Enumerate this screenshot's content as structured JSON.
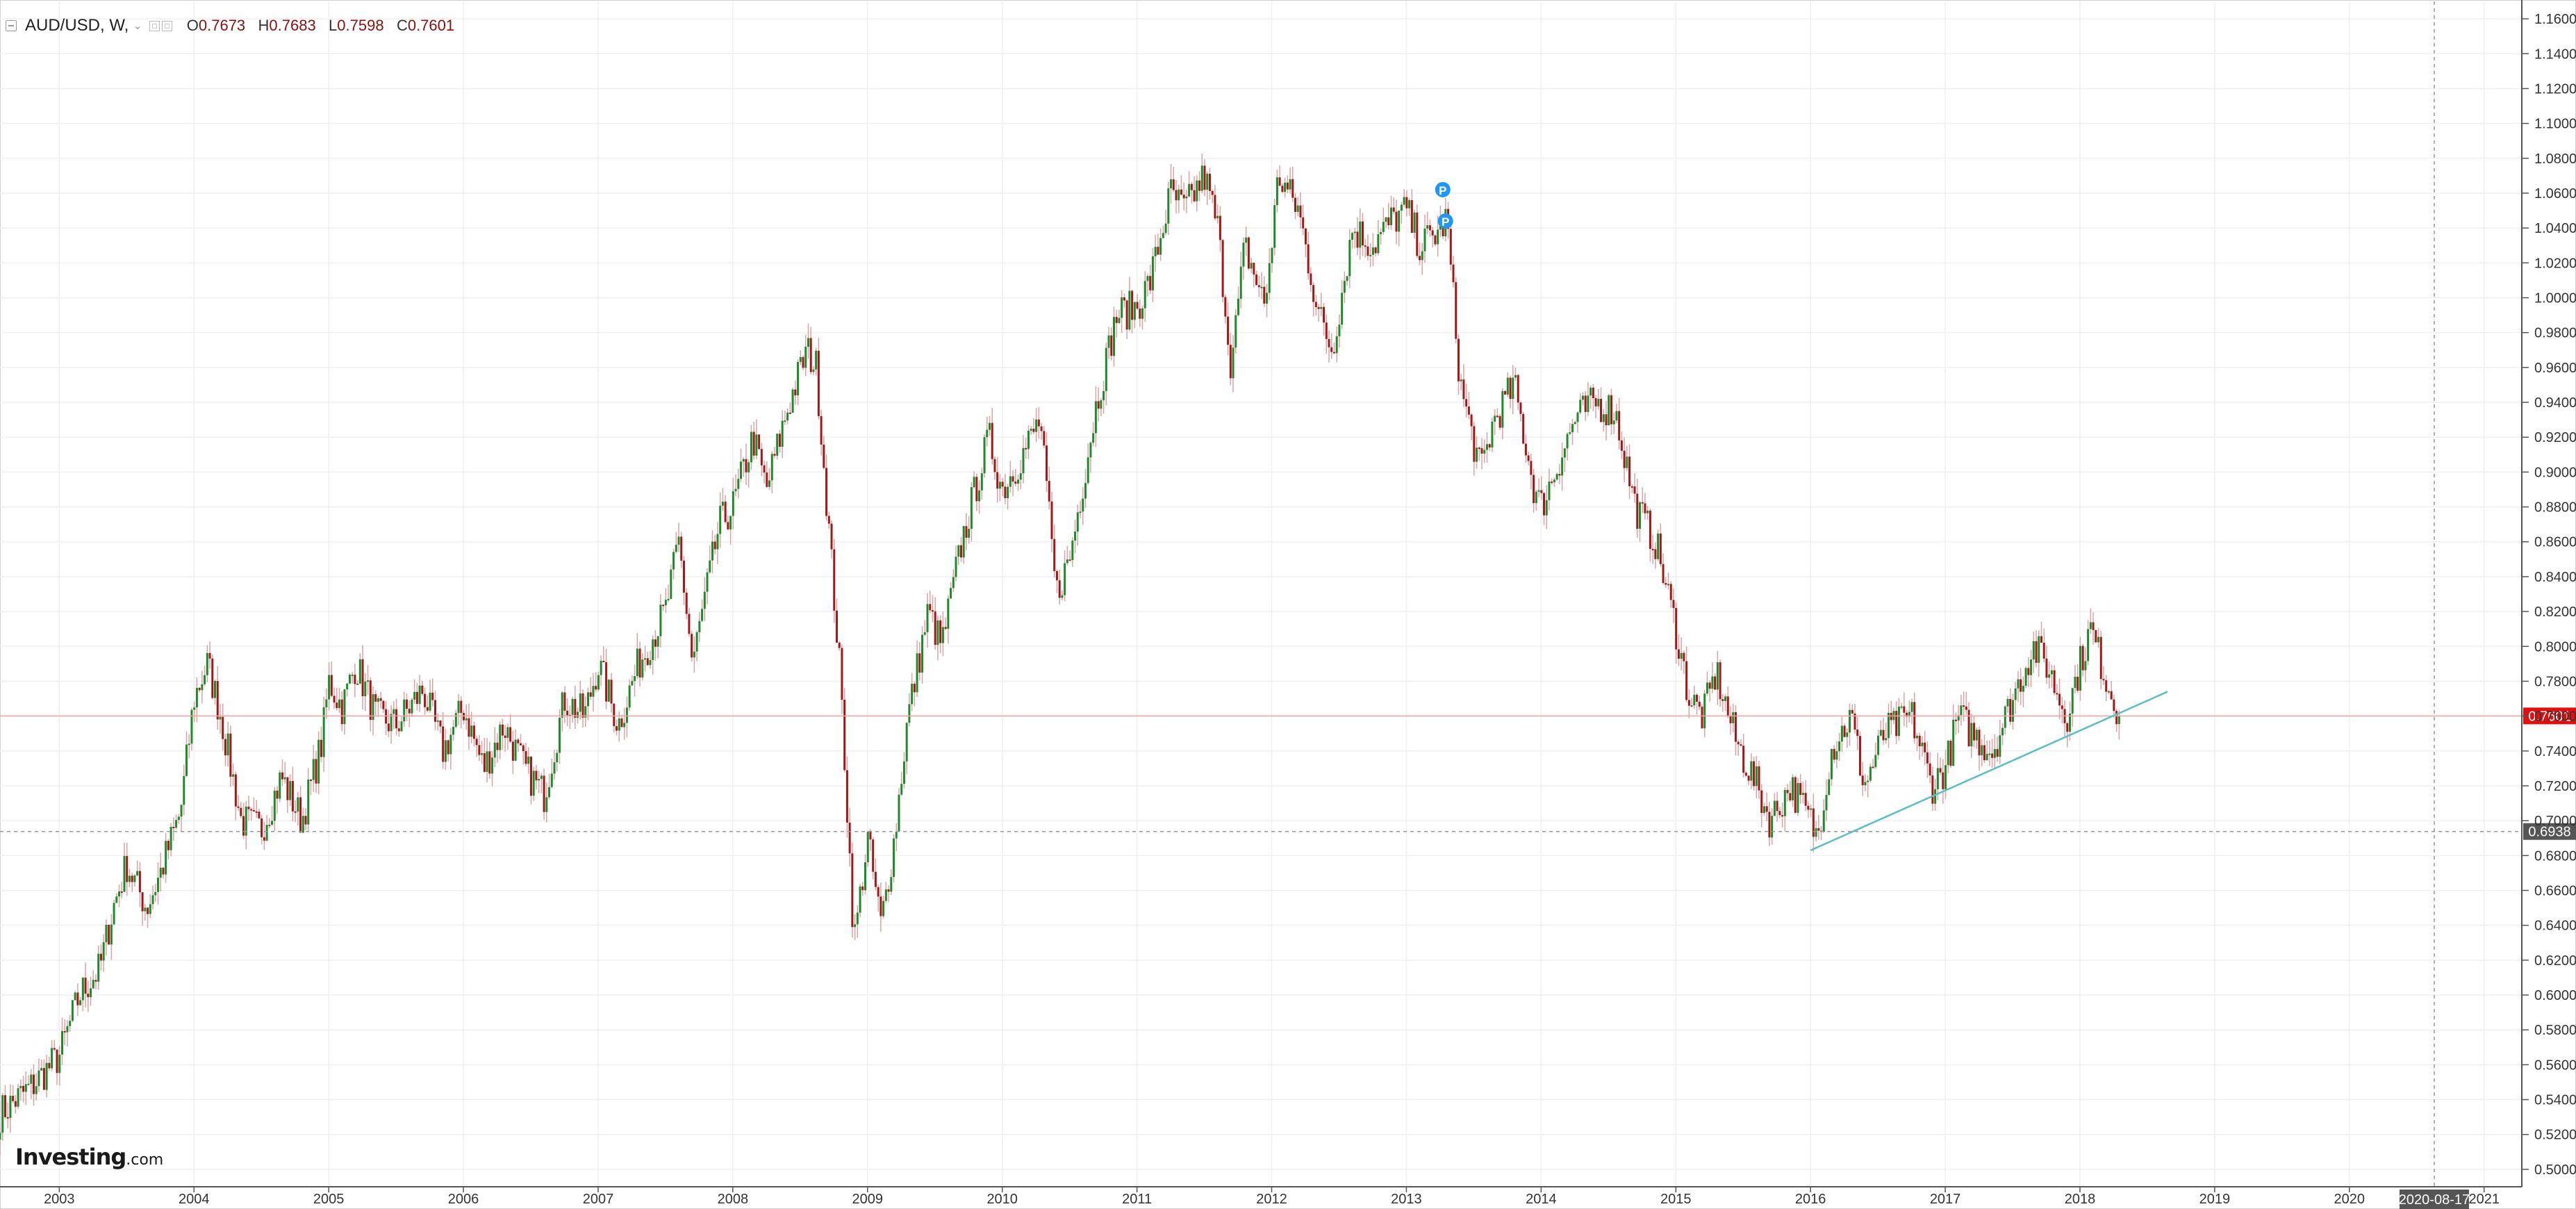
{
  "legend": {
    "symbol": "AUD/USD, W,",
    "open_label": "O",
    "open": "0.7673",
    "high_label": "H",
    "high": "0.7683",
    "low_label": "L",
    "low": "0.7598",
    "close_label": "C",
    "close": "0.7601"
  },
  "watermark": {
    "brand": "Investing",
    "suffix": ".com"
  },
  "colors": {
    "up": "#1e8a2b",
    "down": "#a51616",
    "wick": "#d9a3a3",
    "last_price": "#e01010",
    "trendline": "#5bbfc2",
    "grid": "#f0f0f0",
    "marker": "#2196f3"
  },
  "chart_data": {
    "type": "candlestick",
    "title": "",
    "x_ticks": [
      "2003",
      "2004",
      "2005",
      "2006",
      "2007",
      "2008",
      "2009",
      "2010",
      "2011",
      "2012",
      "2013",
      "2014",
      "2015",
      "2016",
      "2017",
      "2018",
      "2019",
      "2020",
      "2021"
    ],
    "x_range": [
      2002.56,
      2021.28
    ],
    "y_ticks": [
      "0.5000",
      "0.5200",
      "0.5400",
      "0.5600",
      "0.5800",
      "0.6000",
      "0.6200",
      "0.6400",
      "0.6600",
      "0.6800",
      "0.7000",
      "0.7200",
      "0.7400",
      "0.7600",
      "0.7800",
      "0.8000",
      "0.8200",
      "0.8400",
      "0.8600",
      "0.8800",
      "0.9000",
      "0.9200",
      "0.9400",
      "0.9600",
      "0.9800",
      "1.0000",
      "1.0200",
      "1.0400",
      "1.0600",
      "1.0800",
      "1.1000",
      "1.1200",
      "1.1400",
      "1.1600"
    ],
    "y_range": [
      0.49,
      1.17
    ],
    "anchors": [
      [
        2002.56,
        0.532
      ],
      [
        2002.8,
        0.548
      ],
      [
        2003.0,
        0.565
      ],
      [
        2003.15,
        0.6
      ],
      [
        2003.3,
        0.615
      ],
      [
        2003.4,
        0.65
      ],
      [
        2003.5,
        0.675
      ],
      [
        2003.65,
        0.65
      ],
      [
        2003.75,
        0.67
      ],
      [
        2003.9,
        0.705
      ],
      [
        2004.0,
        0.77
      ],
      [
        2004.1,
        0.79
      ],
      [
        2004.2,
        0.76
      ],
      [
        2004.35,
        0.7
      ],
      [
        2004.5,
        0.695
      ],
      [
        2004.65,
        0.725
      ],
      [
        2004.8,
        0.7
      ],
      [
        2004.95,
        0.745
      ],
      [
        2005.0,
        0.78
      ],
      [
        2005.1,
        0.765
      ],
      [
        2005.2,
        0.79
      ],
      [
        2005.35,
        0.76
      ],
      [
        2005.5,
        0.755
      ],
      [
        2005.7,
        0.775
      ],
      [
        2005.85,
        0.74
      ],
      [
        2006.0,
        0.765
      ],
      [
        2006.15,
        0.73
      ],
      [
        2006.3,
        0.755
      ],
      [
        2006.45,
        0.73
      ],
      [
        2006.6,
        0.715
      ],
      [
        2006.75,
        0.77
      ],
      [
        2006.9,
        0.76
      ],
      [
        2007.0,
        0.79
      ],
      [
        2007.15,
        0.755
      ],
      [
        2007.3,
        0.79
      ],
      [
        2007.5,
        0.82
      ],
      [
        2007.6,
        0.86
      ],
      [
        2007.7,
        0.79
      ],
      [
        2007.9,
        0.87
      ],
      [
        2008.0,
        0.88
      ],
      [
        2008.15,
        0.92
      ],
      [
        2008.25,
        0.89
      ],
      [
        2008.4,
        0.935
      ],
      [
        2008.55,
        0.97
      ],
      [
        2008.62,
        0.96
      ],
      [
        2008.7,
        0.88
      ],
      [
        2008.8,
        0.78
      ],
      [
        2008.9,
        0.63
      ],
      [
        2009.0,
        0.69
      ],
      [
        2009.1,
        0.64
      ],
      [
        2009.2,
        0.69
      ],
      [
        2009.3,
        0.76
      ],
      [
        2009.45,
        0.82
      ],
      [
        2009.55,
        0.8
      ],
      [
        2009.7,
        0.86
      ],
      [
        2009.9,
        0.92
      ],
      [
        2010.0,
        0.89
      ],
      [
        2010.15,
        0.91
      ],
      [
        2010.28,
        0.93
      ],
      [
        2010.4,
        0.83
      ],
      [
        2010.5,
        0.85
      ],
      [
        2010.7,
        0.94
      ],
      [
        2010.85,
        0.99
      ],
      [
        2011.0,
        0.995
      ],
      [
        2011.1,
        1.01
      ],
      [
        2011.25,
        1.06
      ],
      [
        2011.35,
        1.05
      ],
      [
        2011.5,
        1.07
      ],
      [
        2011.6,
        1.04
      ],
      [
        2011.7,
        0.96
      ],
      [
        2011.8,
        1.03
      ],
      [
        2011.95,
        0.995
      ],
      [
        2012.05,
        1.07
      ],
      [
        2012.2,
        1.05
      ],
      [
        2012.35,
        0.99
      ],
      [
        2012.45,
        0.97
      ],
      [
        2012.6,
        1.04
      ],
      [
        2012.75,
        1.03
      ],
      [
        2012.9,
        1.045
      ],
      [
        2013.0,
        1.05
      ],
      [
        2013.1,
        1.03
      ],
      [
        2013.2,
        1.035
      ],
      [
        2013.3,
        1.045
      ],
      [
        2013.4,
        0.95
      ],
      [
        2013.55,
        0.9
      ],
      [
        2013.65,
        0.93
      ],
      [
        2013.8,
        0.95
      ],
      [
        2013.95,
        0.89
      ],
      [
        2014.0,
        0.88
      ],
      [
        2014.15,
        0.91
      ],
      [
        2014.25,
        0.93
      ],
      [
        2014.4,
        0.94
      ],
      [
        2014.55,
        0.935
      ],
      [
        2014.7,
        0.88
      ],
      [
        2014.85,
        0.86
      ],
      [
        2015.0,
        0.81
      ],
      [
        2015.1,
        0.77
      ],
      [
        2015.2,
        0.76
      ],
      [
        2015.3,
        0.785
      ],
      [
        2015.45,
        0.745
      ],
      [
        2015.6,
        0.72
      ],
      [
        2015.7,
        0.7
      ],
      [
        2015.85,
        0.72
      ],
      [
        2016.0,
        0.7
      ],
      [
        2016.05,
        0.69
      ],
      [
        2016.15,
        0.74
      ],
      [
        2016.3,
        0.76
      ],
      [
        2016.4,
        0.72
      ],
      [
        2016.55,
        0.75
      ],
      [
        2016.75,
        0.76
      ],
      [
        2016.9,
        0.72
      ],
      [
        2017.0,
        0.73
      ],
      [
        2017.1,
        0.76
      ],
      [
        2017.2,
        0.75
      ],
      [
        2017.35,
        0.74
      ],
      [
        2017.5,
        0.77
      ],
      [
        2017.65,
        0.8
      ],
      [
        2017.75,
        0.79
      ],
      [
        2017.9,
        0.76
      ],
      [
        2018.0,
        0.79
      ],
      [
        2018.08,
        0.81
      ],
      [
        2018.2,
        0.78
      ],
      [
        2018.3,
        0.76
      ]
    ],
    "last_close": 0.7601,
    "last_price_label": "0.7601",
    "horizontal_level": 0.6938,
    "horizontal_level_label": "0.6938",
    "trendline": {
      "from": [
        2016.0,
        0.683
      ],
      "to": [
        2018.65,
        0.774
      ]
    },
    "vertical_marker_date": "2020-08-17",
    "vertical_marker_x": 2020.63,
    "event_markers": [
      {
        "label": "P",
        "x": 2013.27,
        "y": 1.062
      },
      {
        "label": "P",
        "x": 2013.29,
        "y": 1.044
      }
    ]
  }
}
